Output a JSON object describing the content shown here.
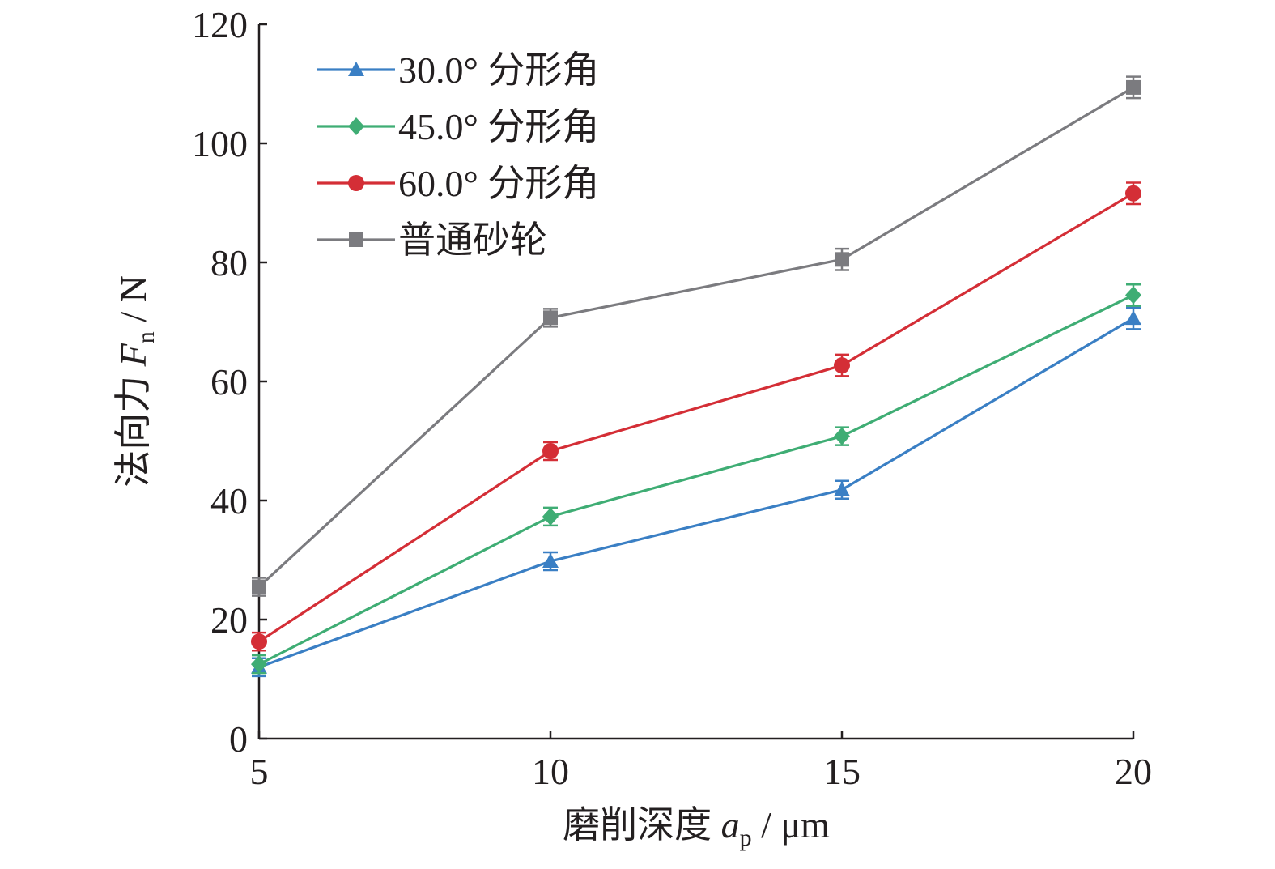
{
  "chart_data": {
    "type": "line",
    "x_label": {
      "prefix": "磨削深度 ",
      "symbol": "a",
      "subscript": "p",
      "unit": " / μm"
    },
    "y_label": {
      "prefix": "法向力 ",
      "symbol": "F",
      "subscript": "n",
      "unit": " / N"
    },
    "x": [
      5,
      10,
      15,
      20
    ],
    "xlim": [
      5,
      20
    ],
    "ylim": [
      0,
      120
    ],
    "x_ticks": [
      "5",
      "10",
      "15",
      "20"
    ],
    "y_ticks": [
      "0",
      "20",
      "40",
      "60",
      "80",
      "100",
      "120"
    ],
    "grid": false,
    "legend_position": "top-left",
    "series": [
      {
        "name": "30.0° 分形角",
        "color": "#3a7fc4",
        "marker": "triangle",
        "values": [
          12,
          29.8,
          41.8,
          70.6
        ],
        "errors": [
          1.5,
          1.5,
          1.5,
          1.8
        ]
      },
      {
        "name": "45.0° 分形角",
        "color": "#3fad74",
        "marker": "diamond",
        "values": [
          12.5,
          37.3,
          50.8,
          74.5
        ],
        "errors": [
          1.5,
          1.5,
          1.5,
          1.8
        ]
      },
      {
        "name": "60.0° 分形角",
        "color": "#d42e36",
        "marker": "circle",
        "values": [
          16.3,
          48.3,
          62.7,
          91.6
        ],
        "errors": [
          1.5,
          1.5,
          1.8,
          1.8
        ]
      },
      {
        "name": "普通砂轮",
        "color": "#7b7b7f",
        "marker": "square",
        "values": [
          25.5,
          70.7,
          80.5,
          109.4
        ],
        "errors": [
          1.5,
          1.5,
          1.8,
          1.8
        ]
      }
    ]
  }
}
